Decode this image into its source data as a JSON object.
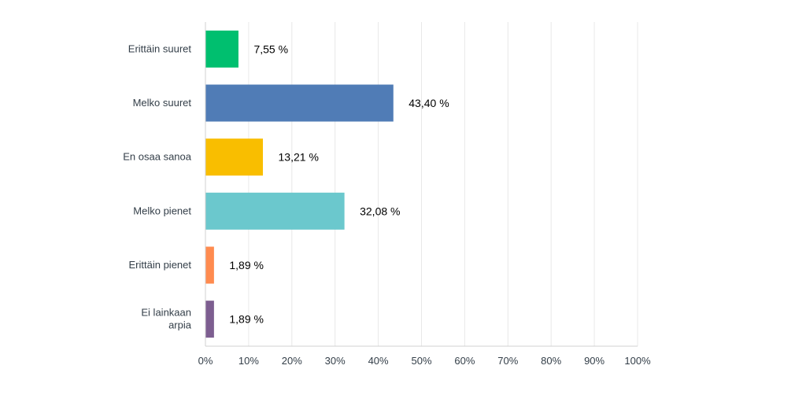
{
  "chart_data": {
    "type": "bar",
    "orientation": "horizontal",
    "categories": [
      [
        "Erittäin suuret"
      ],
      [
        "Melko suuret"
      ],
      [
        "En osaa sanoa"
      ],
      [
        "Melko pienet"
      ],
      [
        "Erittäin pienet"
      ],
      [
        "Ei lainkaan",
        "arpia"
      ]
    ],
    "values": [
      7.55,
      43.4,
      13.21,
      32.08,
      1.89,
      1.89
    ],
    "value_labels": [
      "7,55 %",
      "43,40 %",
      "13,21 %",
      "32,08 %",
      "1,89 %",
      "1,89 %"
    ],
    "colors": [
      "#00bf6f",
      "#507cb6",
      "#f9be00",
      "#6bc8cd",
      "#ff8b4f",
      "#7d5e90"
    ],
    "xlim": [
      0,
      100
    ],
    "x_ticks": [
      0,
      10,
      20,
      30,
      40,
      50,
      60,
      70,
      80,
      90,
      100
    ],
    "x_tick_labels": [
      "0%",
      "10%",
      "20%",
      "30%",
      "40%",
      "50%",
      "60%",
      "70%",
      "80%",
      "90%",
      "100%"
    ],
    "grid": true,
    "title": "",
    "xlabel": "",
    "ylabel": ""
  }
}
